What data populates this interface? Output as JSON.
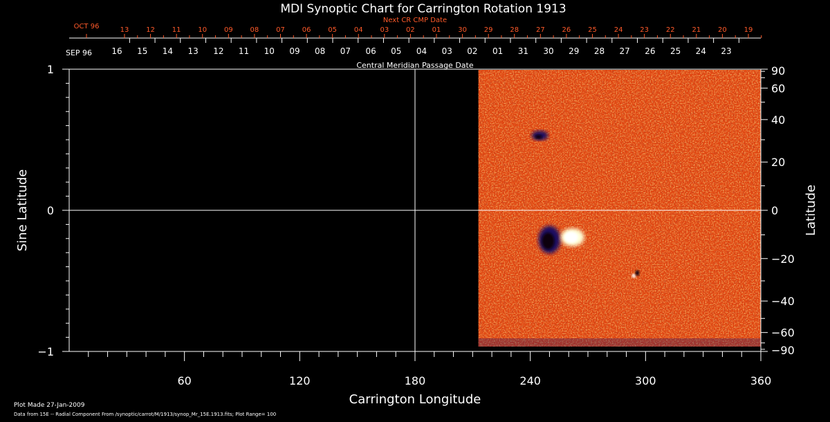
{
  "chart_data": {
    "type": "heatmap",
    "title": "MDI Synoptic Chart for Carrington Rotation 1913",
    "xlabel": "Carrington Longitude",
    "ylabel_left": "Sine Latitude",
    "ylabel_right": "Latitude",
    "xlim": [
      0,
      360
    ],
    "ylim": [
      -1,
      1
    ],
    "x_ticks": [
      60,
      120,
      180,
      240,
      300,
      360
    ],
    "y_ticks_left": [
      "1",
      "0",
      "−1"
    ],
    "y_ticks_right": [
      90,
      60,
      40,
      20,
      0,
      -20,
      -40,
      -60,
      -90
    ],
    "data_coverage_longitude": [
      213,
      360
    ],
    "colors": {
      "background": "#000000",
      "map_base": "#e04410",
      "positive": "#ffffff",
      "negative": "#1a1060",
      "next_axis": "#ff5a2a"
    },
    "field_features": [
      {
        "name": "negative active region",
        "longitude": 250,
        "latitude": -12,
        "polarity": "negative"
      },
      {
        "name": "positive active region",
        "longitude": 262,
        "latitude": -11,
        "polarity": "positive"
      },
      {
        "name": "small bipole",
        "longitude": 295,
        "latitude": -27,
        "polarity": "mixed"
      },
      {
        "name": "northern negative patch",
        "longitude": 245,
        "latitude": 32,
        "polarity": "negative"
      }
    ],
    "next_cr_axis": {
      "label": "Next CR CMP Date",
      "month_label": "OCT 96",
      "dates": [
        "13",
        "12",
        "11",
        "10",
        "09",
        "08",
        "07",
        "06",
        "05",
        "04",
        "03",
        "02",
        "01",
        "30",
        "29",
        "28",
        "27",
        "26",
        "25",
        "24",
        "23",
        "22",
        "21",
        "20",
        "19"
      ]
    },
    "central_meridian_axis": {
      "label": "Central Meridian Passage Date",
      "month_label": "SEP 96",
      "dates": [
        "16",
        "15",
        "14",
        "13",
        "12",
        "11",
        "10",
        "09",
        "08",
        "07",
        "06",
        "05",
        "04",
        "03",
        "02",
        "01",
        "31",
        "30",
        "29",
        "28",
        "27",
        "26",
        "25",
        "24",
        "23"
      ]
    },
    "footer": {
      "plot_made": "Plot Made 27-Jan-2009",
      "source": "Data from 15E -- Radial Component From /synoptic/carrot/M/1913/synop_Mr_15E.1913.fits; Plot Range=  100"
    }
  }
}
